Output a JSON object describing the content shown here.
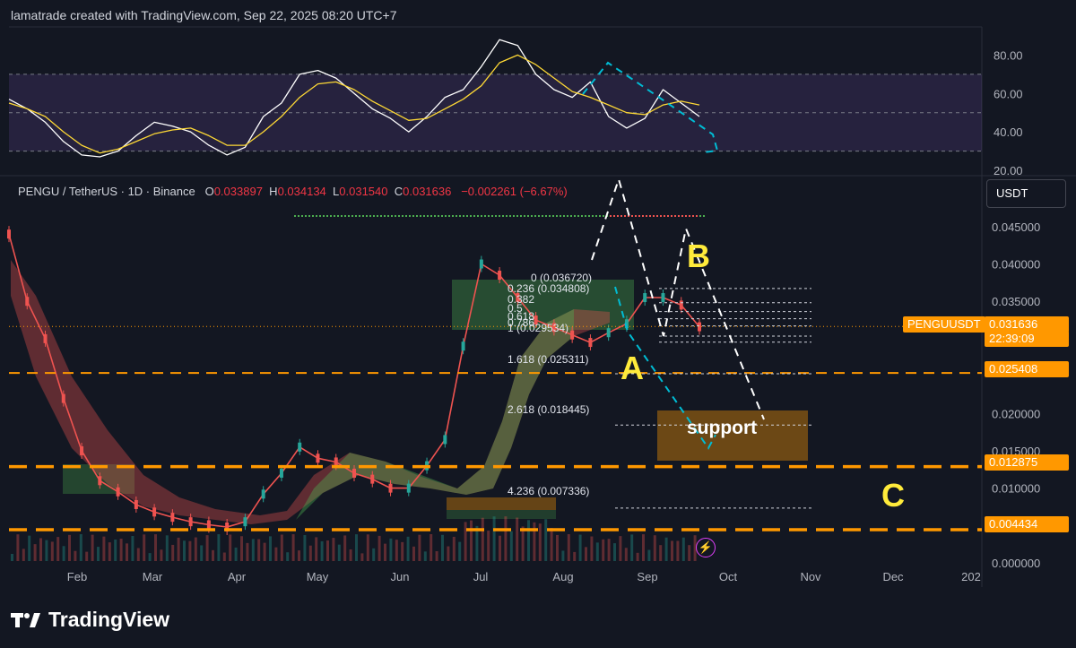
{
  "header": {
    "text": "lamatrade created with TradingView.com, Sep 22, 2025 08:20 UTC+7"
  },
  "legend": {
    "symbol": "PENGU / TetherUS · 1D · Binance",
    "o_label": "O",
    "o": "0.033897",
    "h_label": "H",
    "h": "0.034134",
    "l_label": "L",
    "l": "0.031540",
    "c_label": "C",
    "c": "0.031636",
    "change": "−0.002261 (−6.67%)"
  },
  "currency_button": "USDT",
  "price_badges": {
    "symbol": "PENGUUSDT",
    "last": "0.031636",
    "countdown": "22:39:09",
    "level_1": "0.025408",
    "level_2": "0.012875",
    "level_3": "0.004434"
  },
  "branding": {
    "name": "TradingView"
  },
  "colors": {
    "up": "#26a69a",
    "down": "#ef5350",
    "orange": "#ff9800",
    "annotation": "#ffeb3b",
    "cyan": "#00bcd4",
    "rsi_band": "#7e57c2"
  },
  "chart_data": [
    {
      "type": "line",
      "name": "RSI panel",
      "ylim": [
        20,
        90
      ],
      "y_ticks": [
        "80.00",
        "60.00",
        "40.00",
        "20.00"
      ],
      "band": [
        30,
        70
      ],
      "x_ticks": [
        "Feb",
        "Mar",
        "Apr",
        "May",
        "Jun",
        "Jul",
        "Aug",
        "Sep",
        "Oct",
        "Nov",
        "Dec",
        "202"
      ],
      "series": [
        {
          "values": [
            57,
            52,
            45,
            35,
            28,
            27,
            30,
            38,
            45,
            43,
            40,
            33,
            28,
            32,
            48,
            55,
            70,
            72,
            68,
            60,
            52,
            47,
            40,
            48,
            58,
            62,
            74,
            88,
            85,
            70,
            62,
            58,
            66,
            48,
            42,
            47,
            62,
            55,
            48
          ]
        },
        {
          "values": [
            55,
            52,
            48,
            40,
            33,
            29,
            31,
            35,
            39,
            41,
            42,
            38,
            33,
            33,
            40,
            48,
            58,
            65,
            66,
            62,
            56,
            51,
            46,
            47,
            52,
            57,
            64,
            76,
            80,
            75,
            68,
            61,
            58,
            54,
            50,
            49,
            54,
            56,
            54
          ]
        }
      ]
    },
    {
      "type": "line",
      "name": "Price",
      "ylim": [
        0,
        0.0475
      ],
      "y_ticks": [
        "0.045000",
        "0.040000",
        "0.035000",
        "0.020000",
        "0.015000",
        "0.010000",
        "0.000000"
      ],
      "x_ticks": [
        "Feb",
        "Mar",
        "Apr",
        "May",
        "Jun",
        "Jul",
        "Aug",
        "Sep",
        "Oct",
        "Nov",
        "Dec",
        "202"
      ],
      "series": [
        {
          "values": [
            0.044,
            0.035,
            0.03,
            0.022,
            0.015,
            0.011,
            0.0095,
            0.0078,
            0.0068,
            0.0061,
            0.0055,
            0.0051,
            0.0048,
            0.0055,
            0.0092,
            0.012,
            0.0155,
            0.014,
            0.0135,
            0.012,
            0.0112,
            0.01,
            0.01,
            0.013,
            0.0165,
            0.029,
            0.04,
            0.0385,
            0.0355,
            0.0325,
            0.0315,
            0.0305,
            0.0295,
            0.0308,
            0.032,
            0.0355,
            0.0355,
            0.0345,
            0.0316
          ]
        }
      ],
      "fib_levels": [
        {
          "label": "0 (0.036720)",
          "value": 0.03672
        },
        {
          "label": "0.236 (0.034808)",
          "value": 0.034808
        },
        {
          "label": "0.382",
          "value": 0.033626
        },
        {
          "label": "0.5",
          "value": 0.03267
        },
        {
          "label": "0.618",
          "value": 0.031713
        },
        {
          "label": "0.786",
          "value": 0.030354
        },
        {
          "label": "1 (0.029534)",
          "value": 0.029534
        },
        {
          "label": "1.618 (0.025311)",
          "value": 0.025311
        },
        {
          "label": "2.618 (0.018445)",
          "value": 0.018445
        },
        {
          "label": "4.236 (0.007336)",
          "value": 0.007336
        }
      ],
      "annotations": [
        "A",
        "B",
        "C",
        "support"
      ],
      "horizontal_levels": [
        0.025408,
        0.012875,
        0.004434
      ]
    }
  ]
}
